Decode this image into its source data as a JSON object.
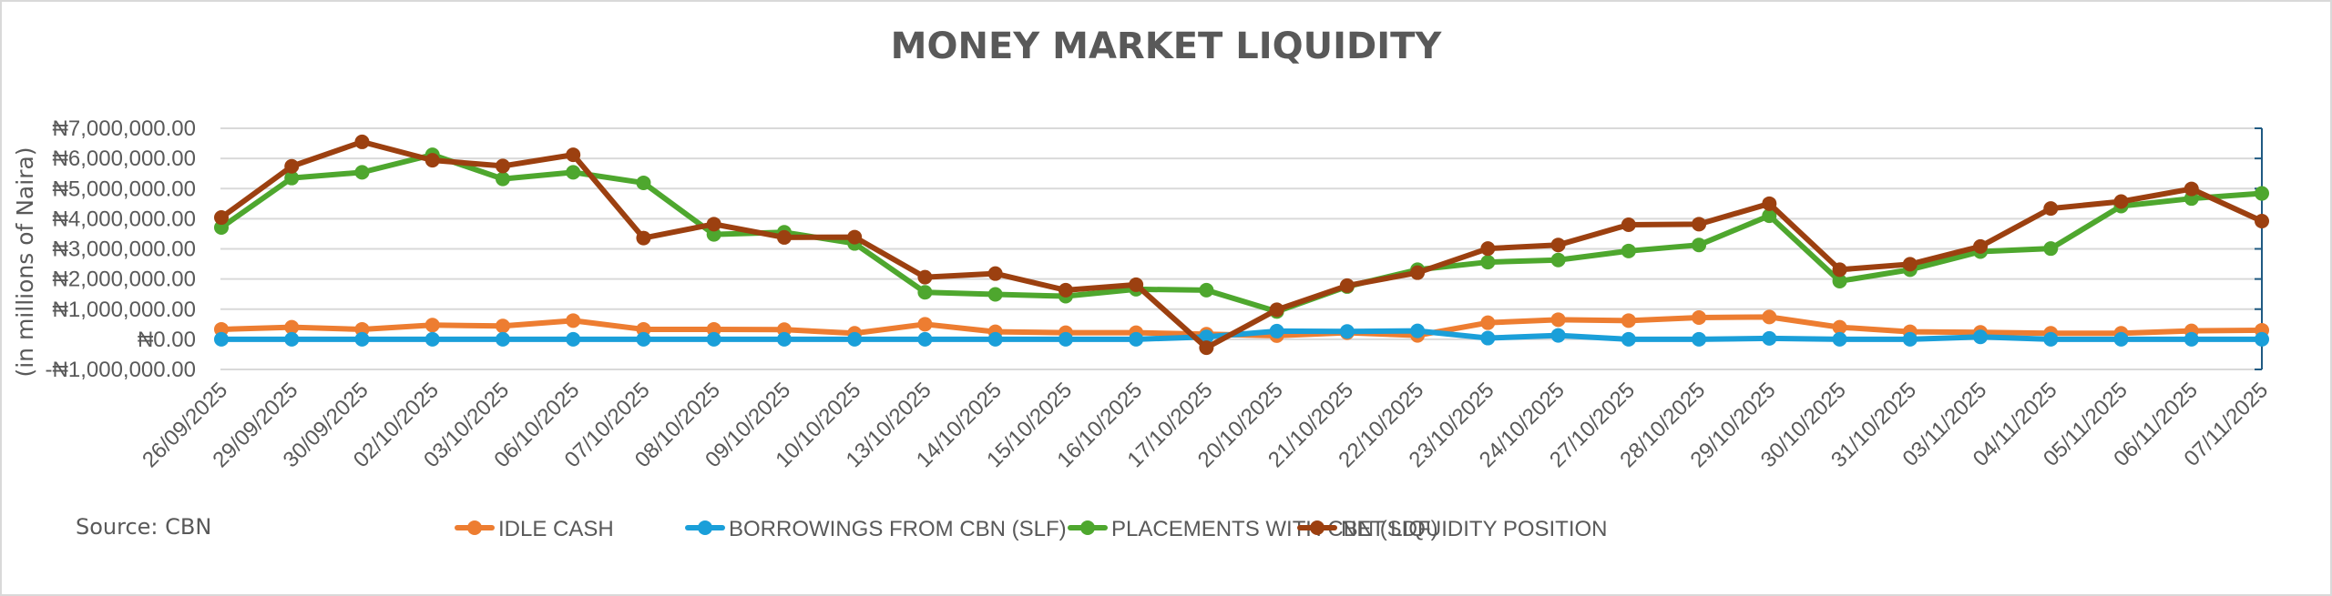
{
  "chart_data": {
    "type": "line",
    "title": "MONEY MARKET LIQUIDITY",
    "xlabel": "",
    "ylabel": "(in millions of Naira)",
    "ylim": [
      -1000000,
      7000000
    ],
    "yticks": [
      -1000000,
      0,
      1000000,
      2000000,
      3000000,
      4000000,
      5000000,
      6000000,
      7000000
    ],
    "ytick_labels": [
      "-₦1,000,000.00",
      "₦0.00",
      "₦1,000,000.00",
      "₦2,000,000.00",
      "₦3,000,000.00",
      "₦4,000,000.00",
      "₦5,000,000.00",
      "₦6,000,000.00",
      "₦7,000,000.00"
    ],
    "grid": true,
    "legend_position": "bottom",
    "source": "Source:  CBN",
    "categories": [
      "26/09/2025",
      "29/09/2025",
      "30/09/2025",
      "02/10/2025",
      "03/10/2025",
      "06/10/2025",
      "07/10/2025",
      "08/10/2025",
      "09/10/2025",
      "10/10/2025",
      "13/10/2025",
      "14/10/2025",
      "15/10/2025",
      "16/10/2025",
      "17/10/2025",
      "20/10/2025",
      "21/10/2025",
      "22/10/2025",
      "23/10/2025",
      "24/10/2025",
      "27/10/2025",
      "28/10/2025",
      "29/10/2025",
      "30/10/2025",
      "31/10/2025",
      "03/11/2025",
      "04/11/2025",
      "05/11/2025",
      "06/11/2025",
      "07/11/2025"
    ],
    "series": [
      {
        "name": "IDLE CASH",
        "color": "#ed7d31",
        "values": [
          330000,
          400000,
          330000,
          470000,
          440000,
          620000,
          330000,
          330000,
          320000,
          200000,
          500000,
          250000,
          220000,
          220000,
          170000,
          120000,
          220000,
          130000,
          550000,
          650000,
          620000,
          720000,
          740000,
          400000,
          250000,
          230000,
          200000,
          200000,
          280000,
          300000
        ]
      },
      {
        "name": "BORROWINGS FROM CBN (SLF)",
        "color": "#1a9fd9",
        "values": [
          0,
          0,
          0,
          0,
          0,
          0,
          0,
          0,
          0,
          0,
          0,
          0,
          0,
          0,
          80000,
          270000,
          260000,
          280000,
          40000,
          130000,
          0,
          0,
          30000,
          0,
          0,
          80000,
          0,
          0,
          0,
          0
        ]
      },
      {
        "name": "PLACEMENTS WITH CBN (SDF)",
        "color": "#4ea72e",
        "values": [
          3710000,
          5350000,
          5540000,
          6120000,
          5320000,
          5540000,
          5190000,
          3480000,
          3550000,
          3180000,
          1560000,
          1490000,
          1430000,
          1660000,
          1630000,
          920000,
          1750000,
          2310000,
          2560000,
          2630000,
          2930000,
          3130000,
          4100000,
          1930000,
          2310000,
          2910000,
          3010000,
          4420000,
          4670000,
          4840000
        ]
      },
      {
        "name": "NET LIQUIDITY POSITION",
        "color": "#9c4010",
        "values": [
          4040000,
          5740000,
          6550000,
          5940000,
          5750000,
          6120000,
          3360000,
          3820000,
          3380000,
          3390000,
          2060000,
          2180000,
          1630000,
          1810000,
          -280000,
          980000,
          1780000,
          2210000,
          3010000,
          3130000,
          3800000,
          3820000,
          4500000,
          2310000,
          2490000,
          3080000,
          4340000,
          4570000,
          4990000,
          3920000
        ]
      }
    ]
  },
  "title": "MONEY MARKET LIQUIDITY",
  "y_axis_title": "(in millions of Naira)",
  "source": "Source:  CBN",
  "legend": [
    {
      "label": "IDLE CASH",
      "color": "#ed7d31"
    },
    {
      "label": "BORROWINGS FROM CBN (SLF)",
      "color": "#1a9fd9"
    },
    {
      "label": "PLACEMENTS WITH CBN (SDF)",
      "color": "#4ea72e"
    },
    {
      "label": "NET LIQUIDITY POSITION",
      "color": "#9c4010"
    }
  ],
  "colors": {
    "text": "#595959",
    "grid": "#d9d9d9",
    "right_axis": "#1f5a82",
    "border": "#d9d9d9"
  }
}
